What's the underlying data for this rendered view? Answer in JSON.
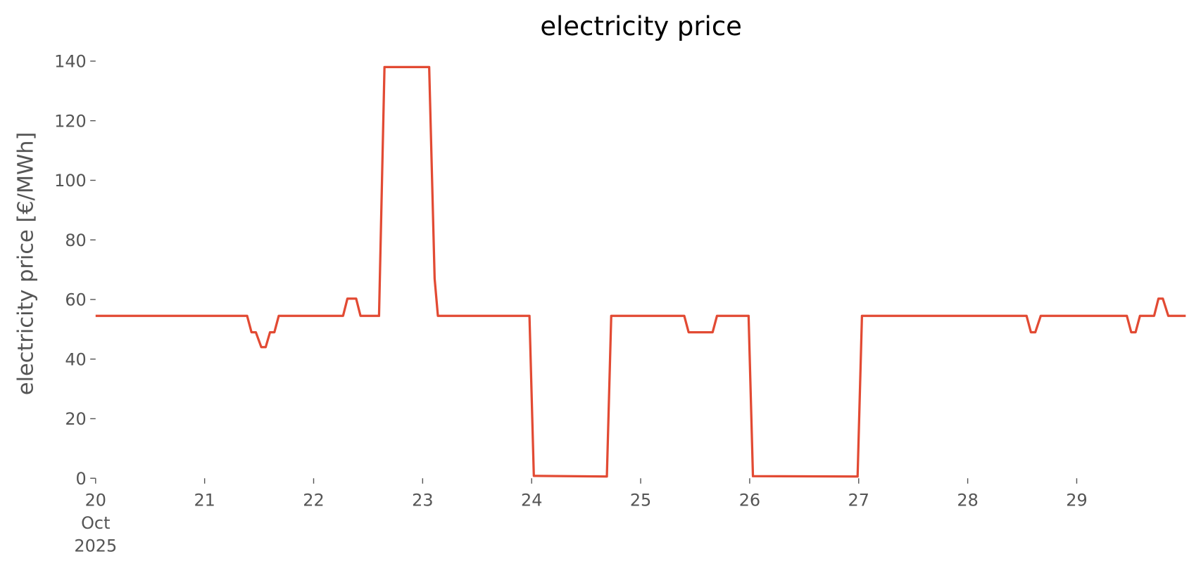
{
  "chart_data": {
    "type": "line",
    "title": "electricity price",
    "y_label": "electricity price [€/MWh]",
    "x": [
      20,
      21.39,
      21.43,
      21.47,
      21.52,
      21.56,
      21.6,
      21.64,
      21.68,
      22.27,
      22.31,
      22.39,
      22.43,
      22.6,
      22.65,
      23.06,
      23.11,
      23.14,
      23.98,
      24.02,
      24.69,
      24.73,
      25.4,
      25.44,
      25.66,
      25.7,
      25.99,
      26.03,
      26.99,
      27.03,
      28.54,
      28.58,
      28.62,
      28.67,
      29.46,
      29.5,
      29.54,
      29.58,
      29.71,
      29.75,
      29.79,
      29.84,
      30
    ],
    "values": [
      54.5,
      54.5,
      49,
      49,
      44,
      44,
      49,
      49,
      54.5,
      54.5,
      60.3,
      60.3,
      54.5,
      54.5,
      138,
      138,
      67,
      54.5,
      54.5,
      0.8,
      0.6,
      54.5,
      54.5,
      49,
      49,
      54.5,
      54.5,
      0.7,
      0.6,
      54.5,
      54.5,
      49,
      49,
      54.5,
      54.5,
      49,
      49,
      54.5,
      54.5,
      60.3,
      60.3,
      54.5,
      54.5
    ],
    "color": "#e24a33",
    "xlim": [
      20,
      30
    ],
    "xticks": [
      {
        "value": 20,
        "label": "20\nOct\n2025"
      },
      21,
      22,
      23,
      24,
      25,
      26,
      27,
      28,
      29
    ],
    "ylim": [
      0,
      140
    ],
    "yticks": [
      0,
      20,
      40,
      60,
      80,
      100,
      120,
      140
    ],
    "grid": false
  }
}
